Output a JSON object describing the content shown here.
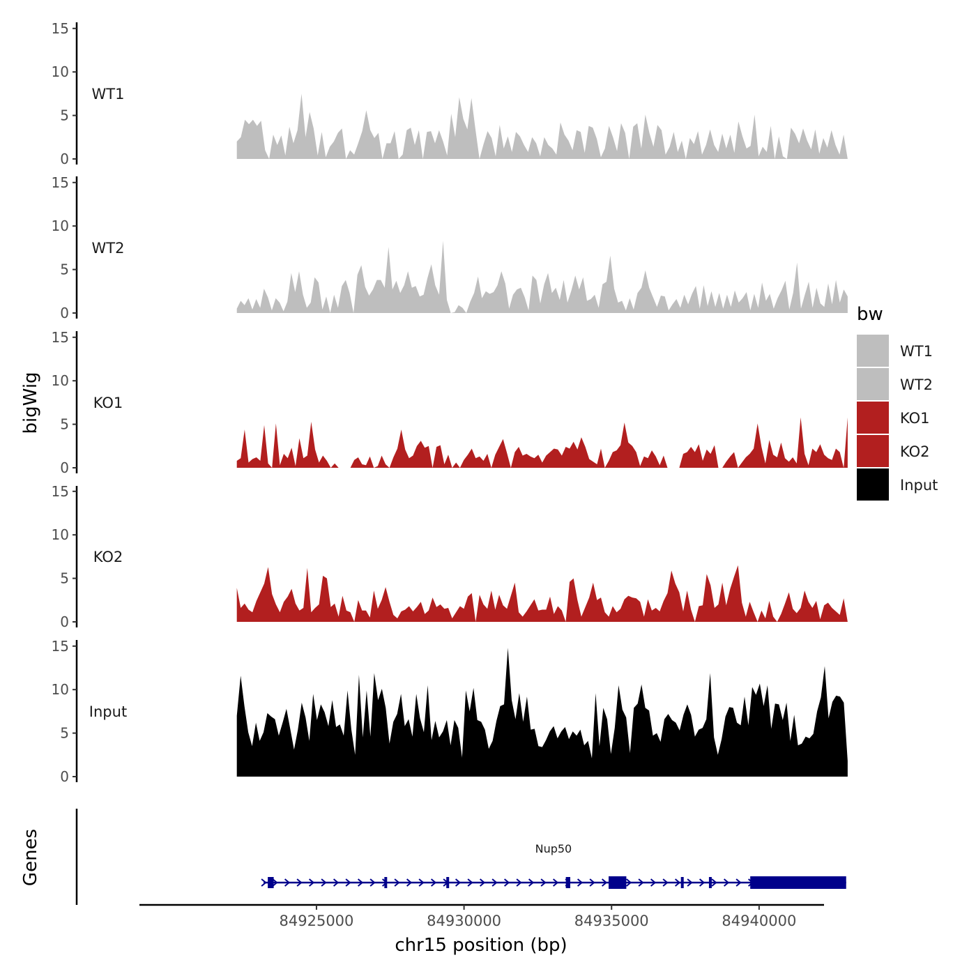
{
  "chart_data": {
    "type": "area",
    "title": "",
    "ylabel": "bigWig",
    "gene_panel_label": "Genes",
    "xlabel": "chr15 position (bp)",
    "xlim": [
      84919000,
      84942200
    ],
    "x_ticks": [
      84925000,
      84930000,
      84935000,
      84940000
    ],
    "x_tick_labels": [
      "84925000",
      "84930000",
      "84935000",
      "84940000"
    ],
    "ylim": [
      0,
      15
    ],
    "y_ticks": [
      0,
      5,
      10,
      15
    ],
    "y_tick_labels": [
      "0",
      "5",
      "10",
      "15"
    ],
    "legend": {
      "title": "bw",
      "position": "right",
      "entries": [
        {
          "label": "WT1",
          "color": "#bebebe"
        },
        {
          "label": "WT2",
          "color": "#bebebe"
        },
        {
          "label": "KO1",
          "color": "#b21f1f"
        },
        {
          "label": "KO2",
          "color": "#b21f1f"
        },
        {
          "label": "Input",
          "color": "#000000"
        }
      ]
    },
    "series": [
      {
        "name": "WT1",
        "color": "#bebebe",
        "x_start": 84922300,
        "x_end": 84943000,
        "values": [
          2,
          2.5,
          4.5,
          4,
          4.5,
          3.8,
          4.4,
          1,
          0,
          2.8,
          1.6,
          2.7,
          0.4,
          3.7,
          1.8,
          3.3,
          7.5,
          2.5,
          5.4,
          3.5,
          0.4,
          3.1,
          0.2,
          1.4,
          2,
          3,
          3.5,
          0,
          1,
          0.5,
          1.8,
          3.2,
          5.6,
          3.3,
          2.4,
          3,
          0,
          1.8,
          1.8,
          3.2,
          0,
          0.5,
          3.3,
          3.6,
          1.6,
          3.3,
          0,
          3.1,
          3.2,
          1.8,
          3.3,
          2,
          0.4,
          5.2,
          2.5,
          7.1,
          4.6,
          3.4,
          7,
          3.4,
          0,
          1.7,
          3.2,
          2.4,
          0.3,
          3.9,
          1.2,
          2.6,
          0.8,
          3.1,
          2.6,
          1.6,
          0.8,
          2.5,
          1.8,
          0.3,
          2.5,
          1.6,
          1.2,
          0.5,
          4.2,
          2.8,
          2.1,
          1,
          3.3,
          3.1,
          0.7,
          3.8,
          3.6,
          2.3,
          0.2,
          1.2,
          3.8,
          2.5,
          0.9,
          4.1,
          3,
          0,
          3.7,
          4.1,
          1.2,
          5.1,
          3,
          1.4,
          3.9,
          3.3,
          0.5,
          1.4,
          3.1,
          0.8,
          2.1,
          0,
          2.4,
          1.7,
          3.2,
          0.5,
          1.6,
          3.4,
          1.6,
          0.8,
          2.9,
          1.2,
          2.8,
          0.7,
          4.3,
          2.6,
          1.2,
          1.5,
          5.1,
          0.3,
          1.4,
          0.8,
          3.8,
          0,
          2.6,
          0.3,
          0,
          3.6,
          2.9,
          1.8,
          3.5,
          2.1,
          1.1,
          3.4,
          0.6,
          2.4,
          1.3,
          3.3,
          1.6,
          0.5,
          2.8,
          0
        ]
      },
      {
        "name": "WT2",
        "color": "#bebebe",
        "x_start": 84922300,
        "x_end": 84943000,
        "values": [
          0.5,
          1.4,
          0.9,
          1.7,
          0.4,
          1.6,
          0.6,
          2.8,
          1.8,
          0.3,
          1.7,
          1.2,
          0.2,
          1.3,
          4.6,
          2.4,
          4.8,
          2.1,
          0.6,
          1.2,
          4.1,
          3.5,
          0.4,
          1.9,
          0,
          2.1,
          0.6,
          3.1,
          3.8,
          2.3,
          0,
          4.4,
          5.5,
          3,
          2,
          2.7,
          3.8,
          3.8,
          2.9,
          7.6,
          2.7,
          3.7,
          2.3,
          3.2,
          4.8,
          2.9,
          3.1,
          1.9,
          2.1,
          4,
          5.6,
          3.2,
          2.1,
          8.3,
          1.5,
          0,
          0.1,
          0.9,
          0.6,
          0,
          1.3,
          2.3,
          4.2,
          1.7,
          2.5,
          2.2,
          2.4,
          3.2,
          4.8,
          3.4,
          0.5,
          2.1,
          2.7,
          2.9,
          1.8,
          0.3,
          4.3,
          3.8,
          1.1,
          3.3,
          4.6,
          2.3,
          2.9,
          1.5,
          3.8,
          1.2,
          2.6,
          4.3,
          2.7,
          4.1,
          1.4,
          1.6,
          2.1,
          0.6,
          3.3,
          3.6,
          6.6,
          2.8,
          1.2,
          1.4,
          0.3,
          1.7,
          0.4,
          2.3,
          2.9,
          4.9,
          2.9,
          1.8,
          0.7,
          2,
          1.9,
          0.3,
          1,
          1.6,
          0.6,
          2.1,
          1,
          2.2,
          3.1,
          0.5,
          3.2,
          0.8,
          2.5,
          0.7,
          2.3,
          0.5,
          2.1,
          0.7,
          2.6,
          1.2,
          1.7,
          2.4,
          0.3,
          2.2,
          0.6,
          3.5,
          1.4,
          2.2,
          0.5,
          1.7,
          2.6,
          3.7,
          0.4,
          2.3,
          5.8,
          0.5,
          2.1,
          3.6,
          0.6,
          2.9,
          1.1,
          0.7,
          3.4,
          1,
          3.8,
          1.2,
          2.7,
          1.9
        ]
      },
      {
        "name": "KO1",
        "color": "#b21f1f",
        "x_start": 84922300,
        "x_end": 84943000,
        "values": [
          0.8,
          1.1,
          4.4,
          0.6,
          1,
          1.2,
          0.8,
          4.9,
          0.5,
          0,
          5.1,
          0.3,
          1.6,
          1.1,
          2.3,
          0.2,
          3.4,
          1.1,
          1.4,
          5.3,
          2.1,
          0.6,
          1.4,
          0.8,
          0,
          0.5,
          0,
          0,
          0,
          0,
          0.9,
          1.2,
          0.4,
          0.3,
          1.3,
          0,
          0.2,
          1.4,
          0.4,
          0,
          1.2,
          2.2,
          4.4,
          2.1,
          1.1,
          1.4,
          2.5,
          3.1,
          2.3,
          2.5,
          0,
          2.4,
          2.6,
          0.4,
          1.5,
          0,
          0.6,
          0,
          0.9,
          1.5,
          2.2,
          1.1,
          1.3,
          0.8,
          1.6,
          0,
          1.5,
          2.4,
          3.3,
          1.7,
          0,
          1.8,
          2.4,
          1.4,
          1.6,
          1.3,
          1.1,
          1.5,
          0.6,
          1.4,
          1.8,
          2.2,
          2.1,
          1.4,
          2.4,
          2.2,
          3,
          2.1,
          3.5,
          2.4,
          1,
          0.7,
          0.4,
          2.2,
          0,
          0.8,
          1.8,
          2,
          2.6,
          5.2,
          2.9,
          2.5,
          1.8,
          0.2,
          1.3,
          1.1,
          2,
          1.3,
          0.3,
          1.4,
          0,
          0,
          0,
          0,
          1.6,
          1.8,
          2.4,
          1.8,
          2.7,
          0.8,
          2.1,
          1.6,
          2.6,
          0,
          0,
          0.7,
          1.3,
          1.8,
          0,
          0.6,
          1.2,
          1.6,
          2.2,
          5.1,
          2.4,
          0.5,
          3.2,
          1.5,
          1.2,
          2.9,
          1.1,
          0.7,
          1.2,
          0.5,
          5.8,
          1.6,
          0.3,
          2.2,
          1.8,
          2.7,
          1.5,
          1.1,
          0.9,
          2.2,
          1.8,
          0,
          5.8
        ]
      },
      {
        "name": "KO2",
        "color": "#b21f1f",
        "x_start": 84922300,
        "x_end": 84943000,
        "values": [
          3.9,
          1.6,
          2.1,
          1.4,
          1.1,
          2.4,
          3.4,
          4.4,
          6.3,
          3.2,
          2,
          1.1,
          2.3,
          2.9,
          3.8,
          2.1,
          1.3,
          1.6,
          6.2,
          1.1,
          1.6,
          2,
          5.3,
          5,
          1.7,
          2.1,
          0.6,
          3,
          1.3,
          1.1,
          0,
          2.5,
          1.3,
          1.3,
          0.5,
          3.6,
          1.5,
          2.5,
          4,
          2.3,
          0.8,
          0.4,
          1.2,
          1.4,
          1.8,
          1.2,
          1.7,
          2.3,
          0.9,
          1.3,
          2.8,
          1.7,
          2,
          1.5,
          1.6,
          0.4,
          1.1,
          1.8,
          1.5,
          2.9,
          3.3,
          0,
          3.1,
          2,
          1.5,
          3.6,
          1.4,
          3.1,
          1.9,
          1.5,
          3,
          4.5,
          1.1,
          0.6,
          1.2,
          1.9,
          2.6,
          1.3,
          1.4,
          1.4,
          2.9,
          0.9,
          1.8,
          1.3,
          0,
          4.6,
          5,
          2.5,
          0.6,
          1.7,
          2.8,
          4.5,
          2.5,
          2.8,
          1.1,
          0.6,
          1.8,
          1.1,
          1.5,
          2.6,
          3,
          2.8,
          2.7,
          2.3,
          0.6,
          2.6,
          1.3,
          1.6,
          1.2,
          2.4,
          3.3,
          5.9,
          4.4,
          3.4,
          1.2,
          3.6,
          1.4,
          0,
          1.8,
          1.9,
          5.5,
          4.2,
          1.6,
          2,
          4.5,
          1.9,
          3.8,
          5.2,
          6.5,
          2.2,
          0.6,
          2.3,
          1.1,
          0,
          1.3,
          0.4,
          2.4,
          0.6,
          0,
          0.9,
          2.1,
          3.4,
          1.5,
          1,
          1.6,
          3.6,
          2.3,
          1.6,
          2.4,
          0.3,
          1.9,
          2.2,
          1.6,
          1.2,
          0.8,
          2.7,
          0
        ]
      },
      {
        "name": "Input",
        "color": "#000000",
        "x_start": 84922300,
        "x_end": 84943000,
        "values": [
          7,
          11.6,
          8.1,
          5.1,
          3.5,
          6.2,
          4.1,
          5.1,
          7.3,
          6.9,
          6.6,
          4.7,
          6.2,
          7.8,
          5.5,
          3.1,
          5.4,
          8.5,
          6.8,
          4.1,
          9.5,
          6.5,
          8.3,
          7.4,
          5.8,
          8.8,
          5.7,
          6,
          4.7,
          9.9,
          5.4,
          2.5,
          11.7,
          4.5,
          9.9,
          4.6,
          11.9,
          8.8,
          10.1,
          7.9,
          3.8,
          6.3,
          7.2,
          9.5,
          5.8,
          6.6,
          4.6,
          9.5,
          6.7,
          5.1,
          10.5,
          4.2,
          6.4,
          4.5,
          5.2,
          6.5,
          3.6,
          6.5,
          5.6,
          2.2,
          9.9,
          7.5,
          10.2,
          6.5,
          6.3,
          5.4,
          3.2,
          4.1,
          6.4,
          8.1,
          8.3,
          14.8,
          8.8,
          6.6,
          9.6,
          6.3,
          9.2,
          5.4,
          5.5,
          3.5,
          3.4,
          4.2,
          5.2,
          5.8,
          4.4,
          5.2,
          5.7,
          4.3,
          5.2,
          4.7,
          5.4,
          3.6,
          4.1,
          2.1,
          9.6,
          3.5,
          7.9,
          6.6,
          2.6,
          5.6,
          10.5,
          7.7,
          6.8,
          2.7,
          7.9,
          8.4,
          10.6,
          7.9,
          7.6,
          4.7,
          5,
          4,
          6.6,
          7.2,
          6.5,
          6.2,
          5.3,
          7.1,
          8.3,
          7.1,
          4.6,
          5.4,
          5.6,
          6.6,
          11.9,
          4.5,
          2.5,
          4.3,
          6.9,
          8,
          7.9,
          6.2,
          5.9,
          9.2,
          5.9,
          10.3,
          9.4,
          10.7,
          8.1,
          10.5,
          5.5,
          8.4,
          8.3,
          6.5,
          8.5,
          4.1,
          7.1,
          3.6,
          3.8,
          4.6,
          4.4,
          4.9,
          7.5,
          9.1,
          12.7,
          6.7,
          8.6,
          9.3,
          9.2,
          8.5,
          1.8
        ]
      }
    ],
    "genes": [
      {
        "name": "Nup50",
        "strand": "+",
        "start": 84923350,
        "end": 84942950,
        "exons": [
          [
            84923350,
            84923550
          ],
          [
            84927300,
            84927360
          ],
          [
            84929400,
            84929480
          ],
          [
            84933450,
            84933600
          ],
          [
            84934900,
            84935500
          ],
          [
            84937350,
            84937430
          ],
          [
            84938300,
            84938380
          ],
          [
            84939700,
            84942950
          ]
        ]
      }
    ]
  }
}
